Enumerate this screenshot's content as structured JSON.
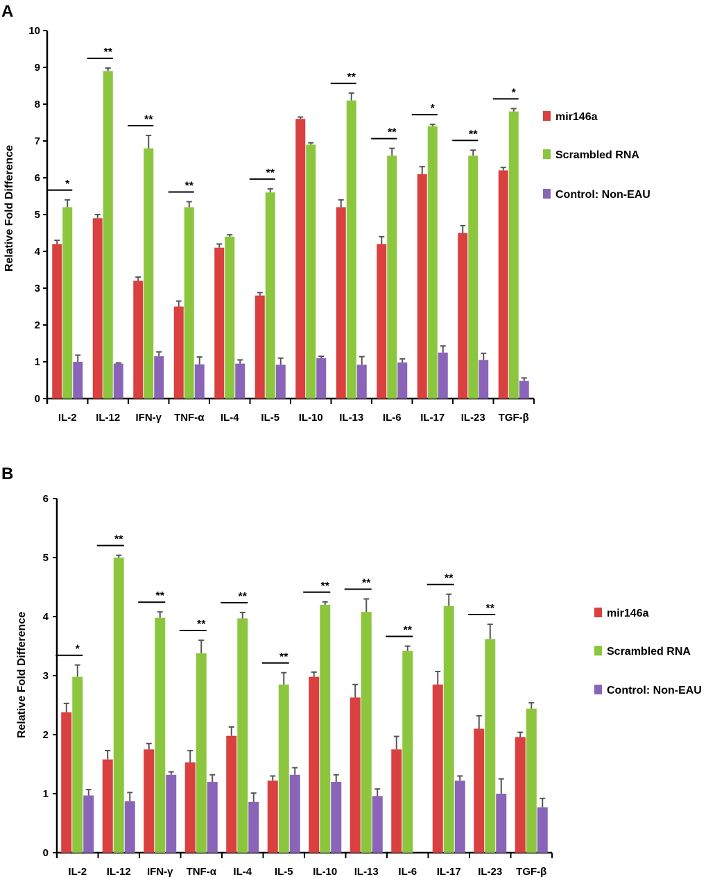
{
  "colors": {
    "mir146a": "#d9403f",
    "scrambled": "#8cc63f",
    "control": "#8a64b8",
    "error": "#555555"
  },
  "chart_data": [
    {
      "panel": "A",
      "type": "bar",
      "ylabel": "Relative Fold Difference",
      "ylim": [
        0,
        10
      ],
      "yticks": [
        "0",
        "1",
        "2",
        "3",
        "4",
        "5",
        "6",
        "7",
        "8",
        "9",
        "10"
      ],
      "categories": [
        "IL-2",
        "IL-12",
        "IFN-γ",
        "TNF-α",
        "IL-4",
        "IL-5",
        "IL-10",
        "IL-13",
        "IL-6",
        "IL-17",
        "IL-23",
        "TGF-β"
      ],
      "series": [
        {
          "name": "mir146a",
          "values": [
            4.2,
            4.9,
            3.2,
            2.5,
            4.1,
            2.8,
            7.6,
            5.2,
            4.2,
            6.1,
            4.5,
            6.2
          ],
          "errors": [
            0.1,
            0.1,
            0.1,
            0.15,
            0.1,
            0.08,
            0.05,
            0.2,
            0.2,
            0.2,
            0.2,
            0.08
          ]
        },
        {
          "name": "Scrambled RNA",
          "values": [
            5.2,
            8.9,
            6.8,
            5.2,
            4.4,
            5.6,
            6.9,
            8.1,
            6.6,
            7.4,
            6.6,
            7.8
          ],
          "errors": [
            0.2,
            0.08,
            0.35,
            0.15,
            0.05,
            0.1,
            0.05,
            0.2,
            0.2,
            0.05,
            0.15,
            0.08
          ]
        },
        {
          "name": "Control: Non-EAU",
          "values": [
            1.0,
            0.95,
            1.15,
            0.93,
            0.95,
            0.92,
            1.1,
            0.92,
            0.98,
            1.25,
            1.05,
            0.48
          ],
          "errors": [
            0.18,
            0.02,
            0.12,
            0.2,
            0.1,
            0.18,
            0.05,
            0.22,
            0.1,
            0.18,
            0.18,
            0.08
          ]
        }
      ],
      "significance": [
        "*",
        "**",
        "**",
        "**",
        "",
        "**",
        "",
        "**",
        "**",
        "*",
        "**",
        "*"
      ],
      "legend": [
        "mir146a",
        "Scrambled RNA",
        "Control: Non-EAU"
      ]
    },
    {
      "panel": "B",
      "type": "bar",
      "ylabel": "Relative Fold Difference",
      "ylim": [
        0,
        6
      ],
      "yticks": [
        "0",
        "1",
        "2",
        "3",
        "4",
        "5",
        "6"
      ],
      "categories": [
        "IL-2",
        "IL-12",
        "IFN-γ",
        "TNF-α",
        "IL-4",
        "IL-5",
        "IL-10",
        "IL-13",
        "IL-6",
        "IL-17",
        "IL-23",
        "TGF-β"
      ],
      "series": [
        {
          "name": "mir146a",
          "values": [
            2.38,
            1.58,
            1.75,
            1.53,
            1.98,
            1.22,
            2.98,
            2.63,
            1.75,
            2.85,
            2.1,
            1.96
          ],
          "errors": [
            0.15,
            0.15,
            0.1,
            0.2,
            0.15,
            0.08,
            0.08,
            0.22,
            0.22,
            0.22,
            0.22,
            0.08
          ]
        },
        {
          "name": "Scrambled RNA",
          "values": [
            2.98,
            5.0,
            3.98,
            3.38,
            3.97,
            2.85,
            4.2,
            4.08,
            3.42,
            4.18,
            3.62,
            2.44
          ],
          "errors": [
            0.2,
            0.04,
            0.1,
            0.22,
            0.1,
            0.2,
            0.05,
            0.22,
            0.08,
            0.2,
            0.25,
            0.1
          ]
        },
        {
          "name": "Control: Non-EAU",
          "values": [
            0.97,
            0.87,
            1.32,
            1.2,
            0.86,
            1.32,
            1.2,
            0.96,
            0,
            1.22,
            1.0,
            0.77
          ],
          "errors": [
            0.1,
            0.15,
            0.05,
            0.12,
            0.15,
            0.12,
            0.12,
            0.12,
            0,
            0.08,
            0.25,
            0.15
          ]
        }
      ],
      "significance": [
        "*",
        "**",
        "**",
        "**",
        "**",
        "**",
        "**",
        "**",
        "**",
        "**",
        "**",
        ""
      ],
      "legend": [
        "mir146a",
        "Scrambled RNA",
        "Control: Non-EAU"
      ]
    }
  ]
}
